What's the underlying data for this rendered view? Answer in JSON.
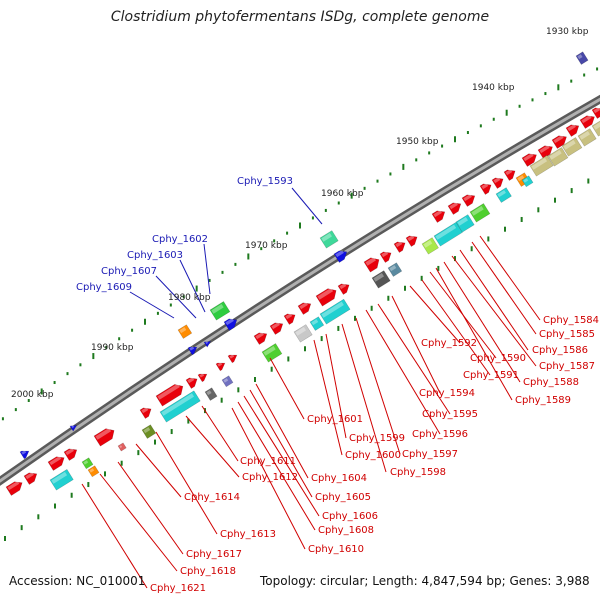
{
  "title": "Clostridium phytofermentans ISDg, complete genome",
  "footer": {
    "accession": "Accession: NC_010001",
    "topology": "Topology: circular; Length: 4,847,594 bp; Genes: 3,988"
  },
  "scale_labels": [
    "1930 kbp",
    "1940 kbp",
    "1950 kbp",
    "1960 kbp",
    "1970 kbp",
    "1980 kbp",
    "1990 kbp",
    "2000 kbp"
  ],
  "blue_labels": [
    "Cphy_1593",
    "Cphy_1602",
    "Cphy_1603",
    "Cphy_1607",
    "Cphy_1609"
  ],
  "red_labels": [
    "Cphy_1584",
    "Cphy_1585",
    "Cphy_1586",
    "Cphy_1587",
    "Cphy_1588",
    "Cphy_1589",
    "Cphy_1590",
    "Cphy_1591",
    "Cphy_1592",
    "Cphy_1594",
    "Cphy_1595",
    "Cphy_1596",
    "Cphy_1597",
    "Cphy_1598",
    "Cphy_1599",
    "Cphy_1600",
    "Cphy_1601",
    "Cphy_1604",
    "Cphy_1605",
    "Cphy_1606",
    "Cphy_1608",
    "Cphy_1610",
    "Cphy_1611",
    "Cphy_1612",
    "Cphy_1613",
    "Cphy_1614",
    "Cphy_1617",
    "Cphy_1618",
    "Cphy_1621"
  ],
  "colors": {
    "backbone": "#808080",
    "gene_red": "#e8000b",
    "gene_blue": "#1010e0",
    "label_blue": "#1a1ab4",
    "label_red": "#d00000",
    "tick_green": "#1e7a1e",
    "cyan": "#20d0d0",
    "green": "#4fcf2f",
    "khaki": "#c8c080",
    "orange": "#ff8c00",
    "gray": "#8a8a8a"
  }
}
